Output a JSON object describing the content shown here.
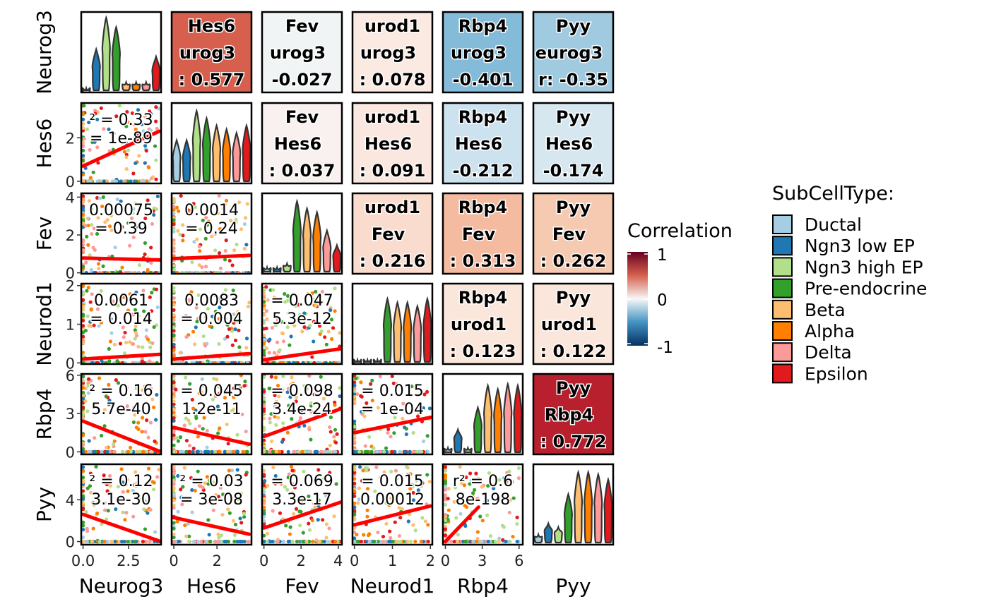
{
  "chart_data": {
    "type": "scatter",
    "variables": [
      "Neurog3",
      "Hes6",
      "Fev",
      "Neurod1",
      "Rbp4",
      "Pyy"
    ],
    "legend": {
      "title": "SubCellType:",
      "items": [
        {
          "label": "Ductal",
          "color": "#A6CEE3"
        },
        {
          "label": "Ngn3 low EP",
          "color": "#1F78B4"
        },
        {
          "label": "Ngn3 high EP",
          "color": "#B2DF8A"
        },
        {
          "label": "Pre-endocrine",
          "color": "#33A02C"
        },
        {
          "label": "Beta",
          "color": "#FDBF6F"
        },
        {
          "label": "Alpha",
          "color": "#FF7F00"
        },
        {
          "label": "Delta",
          "color": "#FB9A99"
        },
        {
          "label": "Epsilon",
          "color": "#E31A1C"
        }
      ]
    },
    "colorbar": {
      "title": "Correlation",
      "ticks": [
        "1",
        "0",
        "-1"
      ],
      "low": "#053061",
      "mid": "#F7F7F7",
      "high": "#67001F"
    },
    "x_axes": [
      {
        "name": "Neurog3",
        "ticks": [
          "0.0",
          "2.5"
        ],
        "tick_values": [
          0,
          2.5
        ],
        "range": [
          -0.1,
          4.3
        ]
      },
      {
        "name": "Hes6",
        "ticks": [
          "0",
          "2"
        ],
        "tick_values": [
          0,
          2
        ],
        "range": [
          -0.1,
          3.6
        ]
      },
      {
        "name": "Fev",
        "ticks": [
          "0",
          "2",
          "4"
        ],
        "tick_values": [
          0,
          2,
          4
        ],
        "range": [
          -0.1,
          4.2
        ]
      },
      {
        "name": "Neurod1",
        "ticks": [
          "0",
          "1",
          "2"
        ],
        "tick_values": [
          0,
          1,
          2
        ],
        "range": [
          -0.05,
          2.05
        ]
      },
      {
        "name": "Rbp4",
        "ticks": [
          "0",
          "3",
          "6"
        ],
        "tick_values": [
          0,
          3,
          6
        ],
        "range": [
          -0.2,
          6.3
        ]
      },
      {
        "name": "Pyy",
        "ticks": [],
        "tick_values": [],
        "range": [
          0,
          1
        ]
      }
    ],
    "y_axes": [
      {
        "name": "Neurog3",
        "ticks": [],
        "tick_values": [],
        "range": [
          0,
          1
        ]
      },
      {
        "name": "Hes6",
        "ticks": [
          "0",
          "2"
        ],
        "tick_values": [
          0,
          2
        ],
        "range": [
          -0.1,
          3.6
        ]
      },
      {
        "name": "Fev",
        "ticks": [
          "0",
          "2",
          "4"
        ],
        "tick_values": [
          0,
          2,
          4
        ],
        "range": [
          -0.05,
          4.2
        ]
      },
      {
        "name": "Neurod1",
        "ticks": [
          "0",
          "1",
          "2"
        ],
        "tick_values": [
          0,
          1,
          2
        ],
        "range": [
          -0.03,
          2.05
        ]
      },
      {
        "name": "Rbp4",
        "ticks": [
          "0",
          "3",
          "6"
        ],
        "tick_values": [
          0,
          3,
          6
        ],
        "range": [
          -0.2,
          6.1
        ]
      },
      {
        "name": "Pyy",
        "ticks": [
          "0",
          "4"
        ],
        "tick_values": [
          0,
          4
        ],
        "range": [
          -0.3,
          7.4
        ]
      }
    ],
    "correlation_tiles": [
      {
        "row": 0,
        "col": 1,
        "r": 0.577,
        "lines": [
          "Hes6",
          "urog3",
          ": 0.577"
        ],
        "fill": "#D6604D"
      },
      {
        "row": 0,
        "col": 2,
        "r": -0.027,
        "lines": [
          "Fev",
          "urog3",
          "-0.027"
        ],
        "fill": "#F1F4F5"
      },
      {
        "row": 0,
        "col": 3,
        "r": 0.078,
        "lines": [
          "urod1",
          "urog3",
          ": 0.078"
        ],
        "fill": "#FBEAE2"
      },
      {
        "row": 0,
        "col": 4,
        "r": -0.401,
        "lines": [
          "Rbp4",
          "urog3",
          "-0.401"
        ],
        "fill": "#84BBD8"
      },
      {
        "row": 0,
        "col": 5,
        "r": -0.35,
        "lines": [
          "Pyy",
          "eurog3",
          "r: -0.35"
        ],
        "fill": "#A0CAE0"
      },
      {
        "row": 1,
        "col": 2,
        "r": 0.037,
        "lines": [
          "Fev",
          "Hes6",
          ": 0.037"
        ],
        "fill": "#F8F1EF"
      },
      {
        "row": 1,
        "col": 3,
        "r": 0.091,
        "lines": [
          "urod1",
          "Hes6",
          ": 0.091"
        ],
        "fill": "#FAE8E0"
      },
      {
        "row": 1,
        "col": 4,
        "r": -0.212,
        "lines": [
          "Rbp4",
          "Hes6",
          "-0.212"
        ],
        "fill": "#CCE2EE"
      },
      {
        "row": 1,
        "col": 5,
        "r": -0.174,
        "lines": [
          "Pyy",
          "Hes6",
          "-0.174"
        ],
        "fill": "#D6E7F0"
      },
      {
        "row": 2,
        "col": 3,
        "r": 0.216,
        "lines": [
          "urod1",
          "Fev",
          ": 0.216"
        ],
        "fill": "#F9DCCD"
      },
      {
        "row": 2,
        "col": 4,
        "r": 0.313,
        "lines": [
          "Rbp4",
          "Fev",
          ": 0.313"
        ],
        "fill": "#F5BBA0"
      },
      {
        "row": 2,
        "col": 5,
        "r": 0.262,
        "lines": [
          "Pyy",
          "Fev",
          ": 0.262"
        ],
        "fill": "#F6C9B1"
      },
      {
        "row": 3,
        "col": 4,
        "r": 0.123,
        "lines": [
          "Rbp4",
          "urod1",
          ": 0.123"
        ],
        "fill": "#FAE6DB"
      },
      {
        "row": 3,
        "col": 5,
        "r": 0.122,
        "lines": [
          "Pyy",
          "urod1",
          ": 0.122"
        ],
        "fill": "#FAE6DB"
      },
      {
        "row": 4,
        "col": 5,
        "r": 0.772,
        "lines": [
          "Pyy",
          "Rbp4",
          ": 0.772"
        ],
        "fill": "#B8202E"
      }
    ],
    "scatter_panels": [
      {
        "row": 1,
        "col": 0,
        "lines": [
          "² = 0.33",
          "= 1e-89"
        ],
        "fit": [
          [
            0,
            0.7
          ],
          [
            4.2,
            2.3
          ]
        ]
      },
      {
        "row": 2,
        "col": 0,
        "lines": [
          "0.00075",
          "= 0.39"
        ],
        "fit": [
          [
            0,
            0.78
          ],
          [
            4.2,
            0.68
          ]
        ]
      },
      {
        "row": 2,
        "col": 1,
        "lines": [
          "0.0014",
          "= 0.24"
        ],
        "fit": [
          [
            0,
            0.75
          ],
          [
            3.5,
            0.92
          ]
        ]
      },
      {
        "row": 3,
        "col": 0,
        "lines": [
          "0.0061",
          "= 0.014"
        ],
        "fit": [
          [
            0,
            0.1
          ],
          [
            4.2,
            0.22
          ]
        ]
      },
      {
        "row": 3,
        "col": 1,
        "lines": [
          "0.0083",
          "= 0.004"
        ],
        "fit": [
          [
            0,
            0.1
          ],
          [
            3.5,
            0.24
          ]
        ]
      },
      {
        "row": 3,
        "col": 2,
        "lines": [
          "= 0.047",
          "5.3e-12"
        ],
        "fit": [
          [
            0,
            0.08
          ],
          [
            4.2,
            0.37
          ]
        ]
      },
      {
        "row": 4,
        "col": 0,
        "lines": [
          "² = 0.16",
          "5.7e-40"
        ],
        "fit": [
          [
            0,
            2.4
          ],
          [
            4.2,
            0.05
          ]
        ]
      },
      {
        "row": 4,
        "col": 1,
        "lines": [
          "= 0.045",
          "1.2e-11"
        ],
        "fit": [
          [
            0,
            1.9
          ],
          [
            3.5,
            0.6
          ]
        ]
      },
      {
        "row": 4,
        "col": 2,
        "lines": [
          "= 0.098",
          "3.4e-24"
        ],
        "fit": [
          [
            0,
            1.2
          ],
          [
            4.2,
            3.4
          ]
        ]
      },
      {
        "row": 4,
        "col": 3,
        "lines": [
          "= 0.015",
          "= 1e-04"
        ],
        "fit": [
          [
            0,
            1.5
          ],
          [
            2.0,
            2.7
          ]
        ]
      },
      {
        "row": 5,
        "col": 0,
        "lines": [
          "² = 0.12",
          "3.1e-30"
        ],
        "fit": [
          [
            0,
            2.6
          ],
          [
            4.2,
            0.05
          ]
        ]
      },
      {
        "row": 5,
        "col": 1,
        "lines": [
          "² = 0.03",
          "= 3e-08"
        ],
        "fit": [
          [
            0,
            2.3
          ],
          [
            3.5,
            0.7
          ]
        ]
      },
      {
        "row": 5,
        "col": 2,
        "lines": [
          "= 0.069",
          "3.3e-17"
        ],
        "fit": [
          [
            0,
            1.3
          ],
          [
            4.2,
            3.8
          ]
        ]
      },
      {
        "row": 5,
        "col": 3,
        "lines": [
          "= 0.015",
          "0.00012"
        ],
        "fit": [
          [
            0,
            1.6
          ],
          [
            2.0,
            3.4
          ]
        ]
      },
      {
        "row": 5,
        "col": 4,
        "lines": [
          "r² = 0.6",
          "8e-198"
        ],
        "fit": [
          [
            0,
            0.0
          ],
          [
            2.7,
            3.3
          ]
        ]
      }
    ]
  }
}
